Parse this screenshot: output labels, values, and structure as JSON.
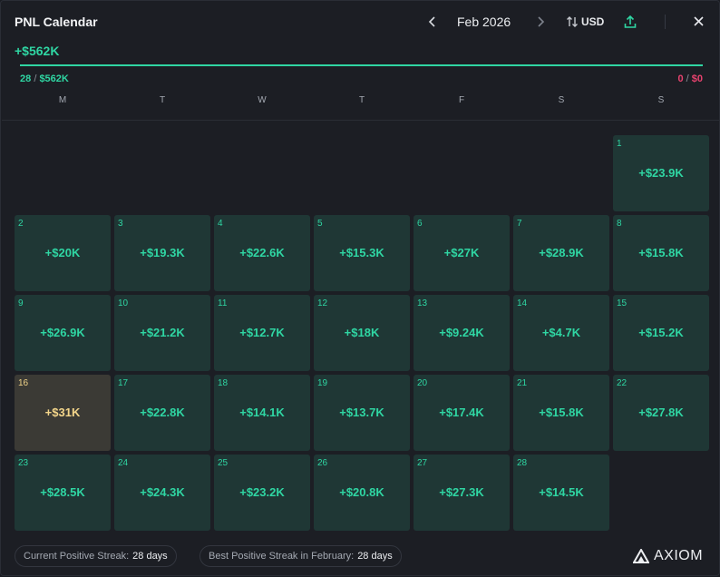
{
  "header": {
    "title": "PNL Calendar",
    "month": "Feb 2026",
    "currency": "USD"
  },
  "summary": {
    "total": "+$562K",
    "progress_fraction": 1.0,
    "wins_count": "28",
    "wins_amount": "$562K",
    "losses_count": "0",
    "losses_amount": "$0",
    "separator": "/"
  },
  "weekdays": [
    "M",
    "T",
    "W",
    "T",
    "F",
    "S",
    "S"
  ],
  "days": [
    {
      "day": "1",
      "value": "+$23.9K",
      "best": false
    },
    {
      "day": "2",
      "value": "+$20K",
      "best": false
    },
    {
      "day": "3",
      "value": "+$19.3K",
      "best": false
    },
    {
      "day": "4",
      "value": "+$22.6K",
      "best": false
    },
    {
      "day": "5",
      "value": "+$15.3K",
      "best": false
    },
    {
      "day": "6",
      "value": "+$27K",
      "best": false
    },
    {
      "day": "7",
      "value": "+$28.9K",
      "best": false
    },
    {
      "day": "8",
      "value": "+$15.8K",
      "best": false
    },
    {
      "day": "9",
      "value": "+$26.9K",
      "best": false
    },
    {
      "day": "10",
      "value": "+$21.2K",
      "best": false
    },
    {
      "day": "11",
      "value": "+$12.7K",
      "best": false
    },
    {
      "day": "12",
      "value": "+$18K",
      "best": false
    },
    {
      "day": "13",
      "value": "+$9.24K",
      "best": false
    },
    {
      "day": "14",
      "value": "+$4.7K",
      "best": false
    },
    {
      "day": "15",
      "value": "+$15.2K",
      "best": false
    },
    {
      "day": "16",
      "value": "+$31K",
      "best": true
    },
    {
      "day": "17",
      "value": "+$22.8K",
      "best": false
    },
    {
      "day": "18",
      "value": "+$14.1K",
      "best": false
    },
    {
      "day": "19",
      "value": "+$13.7K",
      "best": false
    },
    {
      "day": "20",
      "value": "+$17.4K",
      "best": false
    },
    {
      "day": "21",
      "value": "+$15.8K",
      "best": false
    },
    {
      "day": "22",
      "value": "+$27.8K",
      "best": false
    },
    {
      "day": "23",
      "value": "+$28.5K",
      "best": false
    },
    {
      "day": "24",
      "value": "+$24.3K",
      "best": false
    },
    {
      "day": "25",
      "value": "+$23.2K",
      "best": false
    },
    {
      "day": "26",
      "value": "+$20.8K",
      "best": false
    },
    {
      "day": "27",
      "value": "+$27.3K",
      "best": false
    },
    {
      "day": "28",
      "value": "+$14.5K",
      "best": false
    }
  ],
  "footer": {
    "current_streak_label": "Current Positive Streak:",
    "current_streak_value": "28 days",
    "best_streak_label": "Best Positive Streak in February:",
    "best_streak_value": "28 days",
    "brand": "AXIOM"
  },
  "icons": {
    "prev": "chevron-left-icon",
    "next": "chevron-right-icon",
    "swap": "swap-vertical-icon",
    "share": "share-upload-icon",
    "close": "close-icon",
    "logo": "axiom-logo-icon"
  },
  "colors": {
    "positive": "#2fd6a3",
    "negative": "#e8426e",
    "best_day": "#f3d58a",
    "cell_bg": "#1f3735",
    "best_cell_bg": "#3b3a35"
  }
}
